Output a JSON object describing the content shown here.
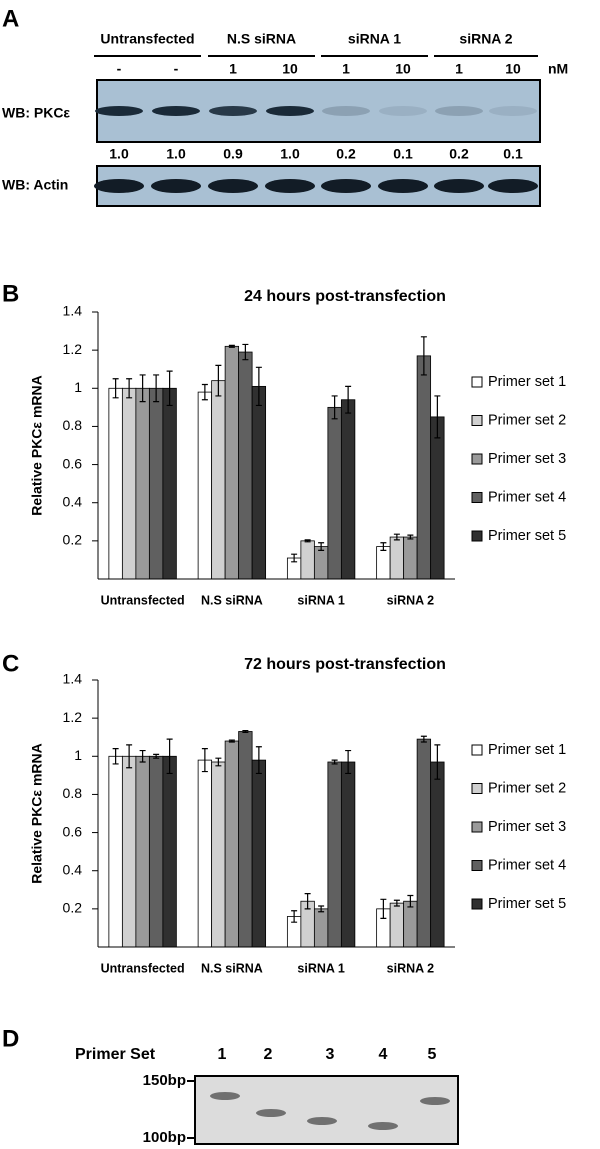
{
  "figure": {
    "panel_labels": [
      "A",
      "B",
      "C",
      "D"
    ]
  },
  "blot": {
    "groups": [
      "Untransfected",
      "N.S siRNA",
      "siRNA 1",
      "siRNA 2"
    ],
    "doses": [
      "-",
      "-",
      "1",
      "10",
      "1",
      "10",
      "1",
      "10"
    ],
    "dose_unit": "nM",
    "rows": [
      "WB: PKCε",
      "WB: Actin"
    ],
    "quantities": [
      {
        "value": 1,
        "label": "1.0"
      },
      {
        "value": 1,
        "label": "1.0"
      },
      0.9,
      {
        "value": 1,
        "label": "1.0"
      },
      0.2,
      0.1,
      0.2,
      0.1
    ]
  },
  "chart_data": [
    {
      "type": "bar",
      "title": "24 hours post-transfection",
      "y_label": "Relative PKCε mRNA",
      "categories": [
        "Untransfected",
        "N.S siRNA",
        "siRNA 1",
        "siRNA 2"
      ],
      "series": [
        {
          "name": "Primer set 1",
          "color": "#ffffff",
          "values": [
            1,
            0.98,
            0.11,
            0.17
          ],
          "errors": [
            0.05,
            0.04,
            0.02,
            0.02
          ]
        },
        {
          "name": "Primer set 2",
          "color": "#d0d0d0",
          "values": [
            1,
            1.04,
            0.2,
            0.22
          ],
          "errors": [
            0.05,
            0.08,
            0.005,
            0.015
          ]
        },
        {
          "name": "Primer set 3",
          "color": "#9a9a9a",
          "values": [
            1,
            1.22,
            0.17,
            0.22
          ],
          "errors": [
            0.07,
            0.005,
            0.02,
            0.01
          ]
        },
        {
          "name": "Primer set 4",
          "color": "#606060",
          "values": [
            1,
            1.19,
            0.9,
            1.17
          ],
          "errors": [
            0.07,
            0.04,
            0.06,
            0.1
          ]
        },
        {
          "name": "Primer set 5",
          "color": "#303030",
          "values": [
            1,
            1.01,
            0.94,
            0.85
          ],
          "errors": [
            0.09,
            0.1,
            0.07,
            0.11
          ]
        }
      ],
      "ylim": [
        0,
        1.4
      ],
      "yticks": [
        0.2,
        0.4,
        0.6,
        0.8,
        1,
        1.2,
        1.4
      ],
      "legend": "right"
    },
    {
      "type": "bar",
      "title": "72 hours post-transfection",
      "y_label": "Relative PKCε mRNA",
      "categories": [
        "Untransfected",
        "N.S siRNA",
        "siRNA 1",
        "siRNA 2"
      ],
      "series": [
        {
          "name": "Primer set 1",
          "color": "#ffffff",
          "values": [
            1,
            0.98,
            0.16,
            0.2
          ],
          "errors": [
            0.04,
            0.06,
            0.03,
            0.05
          ]
        },
        {
          "name": "Primer set 2",
          "color": "#d0d0d0",
          "values": [
            1,
            0.97,
            0.24,
            0.23
          ],
          "errors": [
            0.06,
            0.02,
            0.04,
            0.015
          ]
        },
        {
          "name": "Primer set 3",
          "color": "#9a9a9a",
          "values": [
            1,
            1.08,
            0.2,
            0.24
          ],
          "errors": [
            0.03,
            0.005,
            0.015,
            0.03
          ]
        },
        {
          "name": "Primer set 4",
          "color": "#606060",
          "values": [
            1,
            1.13,
            0.97,
            1.09
          ],
          "errors": [
            0.01,
            0.005,
            0.01,
            0.015
          ]
        },
        {
          "name": "Primer set 5",
          "color": "#303030",
          "values": [
            1,
            0.98,
            0.97,
            0.97
          ],
          "errors": [
            0.09,
            0.07,
            0.06,
            0.09
          ]
        }
      ],
      "ylim": [
        0,
        1.4
      ],
      "yticks": [
        0.2,
        0.4,
        0.6,
        0.8,
        1,
        1.2,
        1.4
      ],
      "legend": "right"
    }
  ],
  "gel": {
    "label": "Primer Set",
    "lanes": [
      "1",
      "2",
      "3",
      "4",
      "5"
    ],
    "markers": [
      "150bp",
      "100bp"
    ]
  }
}
